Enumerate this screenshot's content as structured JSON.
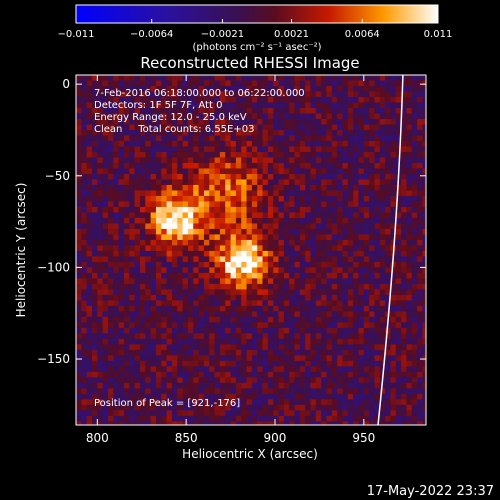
{
  "chart_data": {
    "type": "heatmap",
    "title": "Reconstructed RHESSI Image",
    "xlabel": "Heliocentric X (arcsec)",
    "ylabel": "Heliocentric Y (arcsec)",
    "xlim": [
      788,
      985
    ],
    "ylim": [
      -186,
      5
    ],
    "x_ticks": [
      800,
      850,
      900,
      950
    ],
    "y_ticks": [
      0,
      -50,
      -100,
      -150
    ],
    "colorbar": {
      "ticks": [
        -0.011,
        -0.0064,
        -0.0021,
        0.0021,
        0.0064,
        0.011
      ],
      "tick_labels": [
        "−0.011",
        "−0.0064",
        "−0.0021",
        "0.0021",
        "0.0064",
        "0.011"
      ],
      "unit_label": "(photons cm⁻² s⁻¹ asec⁻²)",
      "range": [
        -0.011,
        0.011
      ]
    },
    "annotations": {
      "time_range": "7-Feb-2016 06:18:00.000 to 06:22:00.000",
      "detectors": "Detectors: 1F 5F 7F, Att 0",
      "energy": "Energy Range: 12.0 - 25.0 keV",
      "method": "Clean     Total counts: 6.55E+03",
      "peak": "Position of Peak = [921,-176]"
    },
    "sources": [
      {
        "x": 843,
        "y": -72,
        "sigma": 11,
        "amp": 0.011
      },
      {
        "x": 880,
        "y": -95,
        "sigma": 11,
        "amp": 0.011
      },
      {
        "x": 873,
        "y": -55,
        "sigma": 15,
        "amp": 0.006
      }
    ],
    "limb_arc": [
      [
        972,
        5
      ],
      [
        970,
        -60
      ],
      [
        965,
        -120
      ],
      [
        958,
        -186
      ]
    ]
  },
  "footer": {
    "timestamp": "17-May-2022 23:37"
  }
}
